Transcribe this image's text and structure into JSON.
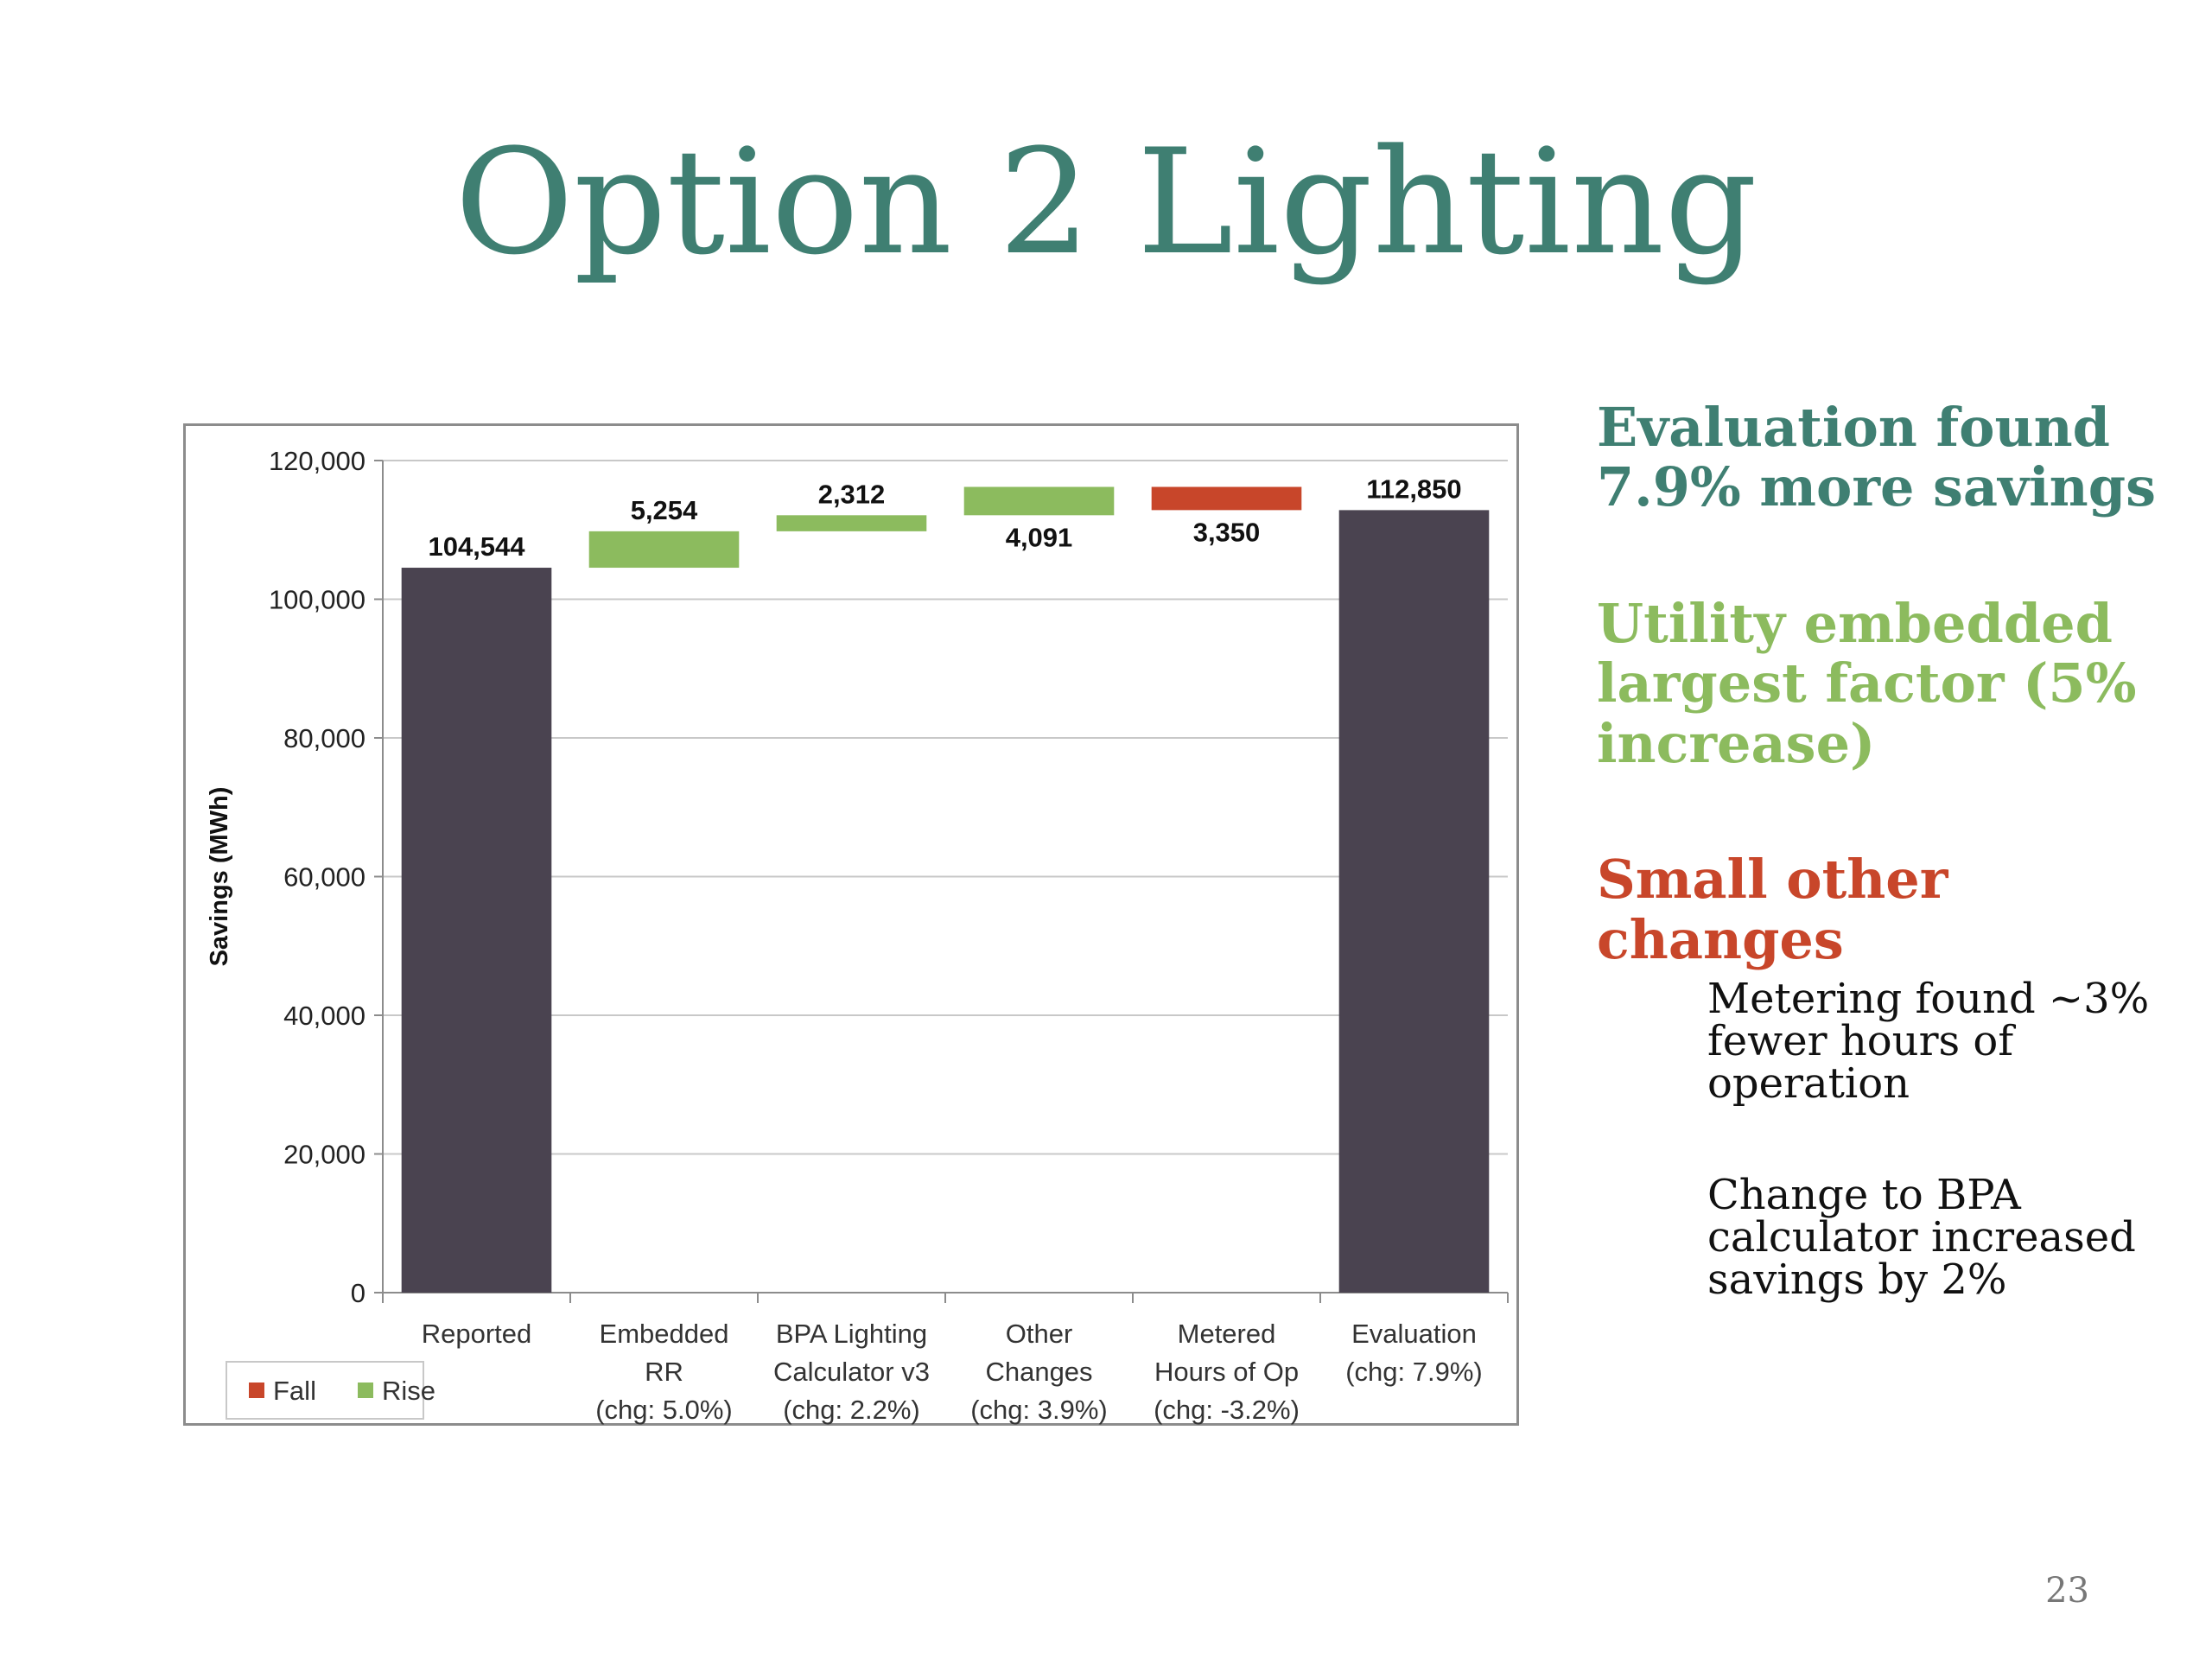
{
  "slide": {
    "title": "Option 2 Lighting",
    "page_number": "23"
  },
  "notes": {
    "heading1": "Evaluation found 7.9% more savings",
    "heading2": "Utility embedded largest factor (5% increase)",
    "heading3": "Small other changes",
    "items": [
      "Metering found ~3% fewer hours of operation",
      "Change to BPA calculator increased savings by 2%"
    ]
  },
  "colors": {
    "title": "#3f7f72",
    "total": "#4a4350",
    "rise": "#8cbb5e",
    "fall": "#c8462a",
    "gridline": "#c8c8c8"
  },
  "chart_data": {
    "type": "bar",
    "subtype": "waterfall",
    "ylabel": "Savings (MWh)",
    "ylim": [
      0,
      120000
    ],
    "yticks": [
      "0",
      "20,000",
      "40,000",
      "60,000",
      "80,000",
      "100,000",
      "120,000"
    ],
    "ytick_values": [
      0,
      20000,
      40000,
      60000,
      80000,
      100000,
      120000
    ],
    "grid": true,
    "legend": {
      "position": "bottom-left",
      "entries": [
        {
          "label": "Fall",
          "color": "#c8462a"
        },
        {
          "label": "Rise",
          "color": "#8cbb5e"
        }
      ]
    },
    "categories": [
      [
        "Reported"
      ],
      [
        "Embedded",
        "RR",
        "(chg: 5.0%)"
      ],
      [
        "BPA Lighting",
        "Calculator v3",
        "(chg: 2.2%)"
      ],
      [
        "Other",
        "Changes",
        "(chg: 3.9%)"
      ],
      [
        "Metered",
        "Hours of Op",
        "(chg: -3.2%)"
      ],
      [
        "Evaluation",
        "(chg: 7.9%)"
      ]
    ],
    "bars": [
      {
        "kind": "total",
        "start": 0,
        "end": 104544,
        "label": "104,544",
        "label_side": "above"
      },
      {
        "kind": "rise",
        "start": 104544,
        "end": 109798,
        "label": "5,254",
        "label_side": "above"
      },
      {
        "kind": "rise",
        "start": 109798,
        "end": 112110,
        "label": "2,312",
        "label_side": "above"
      },
      {
        "kind": "rise",
        "start": 112110,
        "end": 116201,
        "label": "4,091",
        "label_side": "below"
      },
      {
        "kind": "fall",
        "start": 116201,
        "end": 112851,
        "label": "3,350",
        "label_side": "below"
      },
      {
        "kind": "total",
        "start": 0,
        "end": 112850,
        "label": "112,850",
        "label_side": "above"
      }
    ]
  }
}
